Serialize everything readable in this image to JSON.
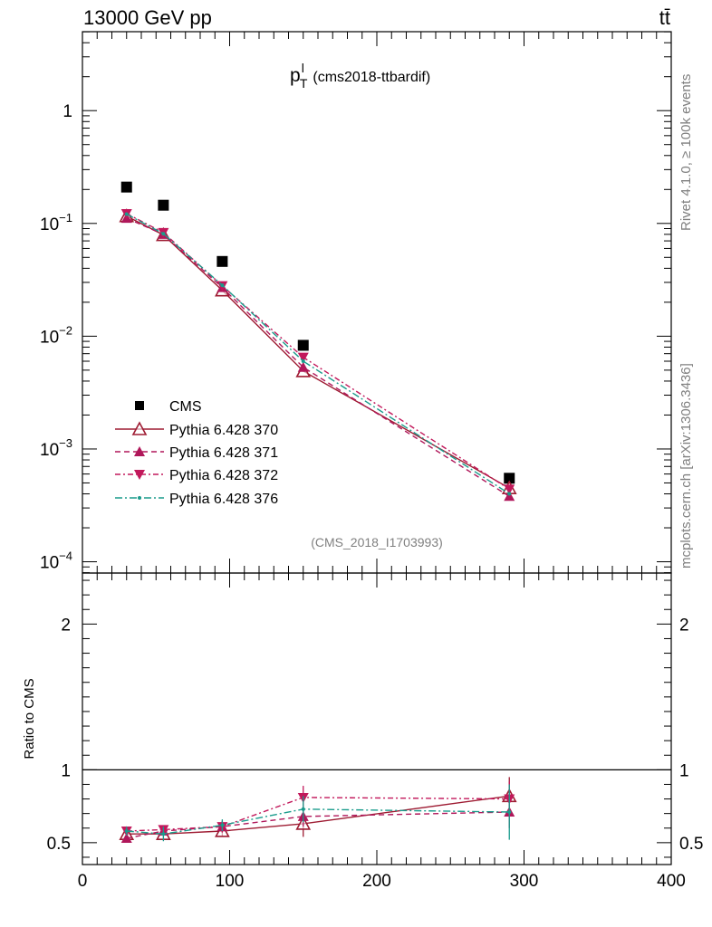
{
  "header": {
    "energy_label": "13000 GeV pp",
    "process_label": "tt̄"
  },
  "side_labels": {
    "rivet": "Rivet 4.1.0, ≥ 100k events",
    "mcplots": "mcplots.cern.ch [arXiv:1306.3436]"
  },
  "chart_data": [
    {
      "type": "scatter",
      "panel": "main",
      "title_main": "p",
      "title_sup": "l",
      "title_sub": "T",
      "title_suffix": "(cms2018-ttbardif)",
      "analysis_id": "(CMS_2018_I1703993)",
      "xlim": [
        0,
        400
      ],
      "ylim_log10": [
        -4.1,
        0.7
      ],
      "yscale": "log",
      "ytick_labels": [
        {
          "exp": 0,
          "base": "1",
          "sup": ""
        },
        {
          "exp": -1,
          "base": "10",
          "sup": "−1"
        },
        {
          "exp": -2,
          "base": "10",
          "sup": "−2"
        },
        {
          "exp": -3,
          "base": "10",
          "sup": "−3"
        },
        {
          "exp": -4,
          "base": "10",
          "sup": "−4"
        }
      ],
      "x": [
        30,
        55,
        95,
        150,
        290
      ],
      "series": [
        {
          "name": "CMS",
          "style": "data",
          "color": "#000000",
          "values": [
            0.21,
            0.145,
            0.046,
            0.0083,
            0.00055
          ]
        },
        {
          "name": "Pythia 6.428 370",
          "style": "open-triangle-solid",
          "color": "#9e1b32",
          "values": [
            0.116,
            0.079,
            0.0255,
            0.0049,
            0.00045
          ]
        },
        {
          "name": "Pythia 6.428 371",
          "style": "triangle-dashed",
          "color": "#b0175a",
          "values": [
            0.111,
            0.08,
            0.027,
            0.0053,
            0.00038
          ]
        },
        {
          "name": "Pythia 6.428 372",
          "style": "down-triangle-dashdot",
          "color": "#c2185b",
          "values": [
            0.122,
            0.083,
            0.028,
            0.0065,
            0.00044
          ]
        },
        {
          "name": "Pythia 6.428 376",
          "style": "dot-dashdot",
          "color": "#1a9c8c",
          "values": [
            0.121,
            0.081,
            0.0283,
            0.006,
            0.0004
          ]
        }
      ]
    },
    {
      "type": "line",
      "panel": "ratio",
      "ylabel": "Ratio to CMS",
      "xlim": [
        0,
        400
      ],
      "ylim": [
        0.35,
        2.35
      ],
      "xtick_labels": [
        "0",
        "100",
        "200",
        "300",
        "400"
      ],
      "ytick_labels": [
        "0.5",
        "1",
        "2"
      ],
      "reference_line": 1,
      "x": [
        30,
        55,
        95,
        150,
        290
      ],
      "series": [
        {
          "name": "Pythia 6.428 370",
          "color": "#9e1b32",
          "values": [
            0.56,
            0.56,
            0.58,
            0.63,
            0.82
          ],
          "errors": [
            0.03,
            0.03,
            0.04,
            0.09,
            0.13
          ]
        },
        {
          "name": "Pythia 6.428 371",
          "color": "#b0175a",
          "values": [
            0.53,
            0.58,
            0.61,
            0.68,
            0.71
          ],
          "errors": [
            0.03,
            0.03,
            0.04,
            0.07,
            0.11
          ]
        },
        {
          "name": "Pythia 6.428 372",
          "color": "#c2185b",
          "values": [
            0.58,
            0.59,
            0.61,
            0.81,
            0.8
          ],
          "errors": [
            0.03,
            0.03,
            0.04,
            0.08,
            0.12
          ]
        },
        {
          "name": "Pythia 6.428 376",
          "color": "#1a9c8c",
          "values": [
            0.58,
            0.56,
            0.62,
            0.73,
            0.71
          ],
          "errors": [
            0.03,
            0.05,
            0.04,
            0.09,
            0.19
          ]
        }
      ]
    }
  ]
}
